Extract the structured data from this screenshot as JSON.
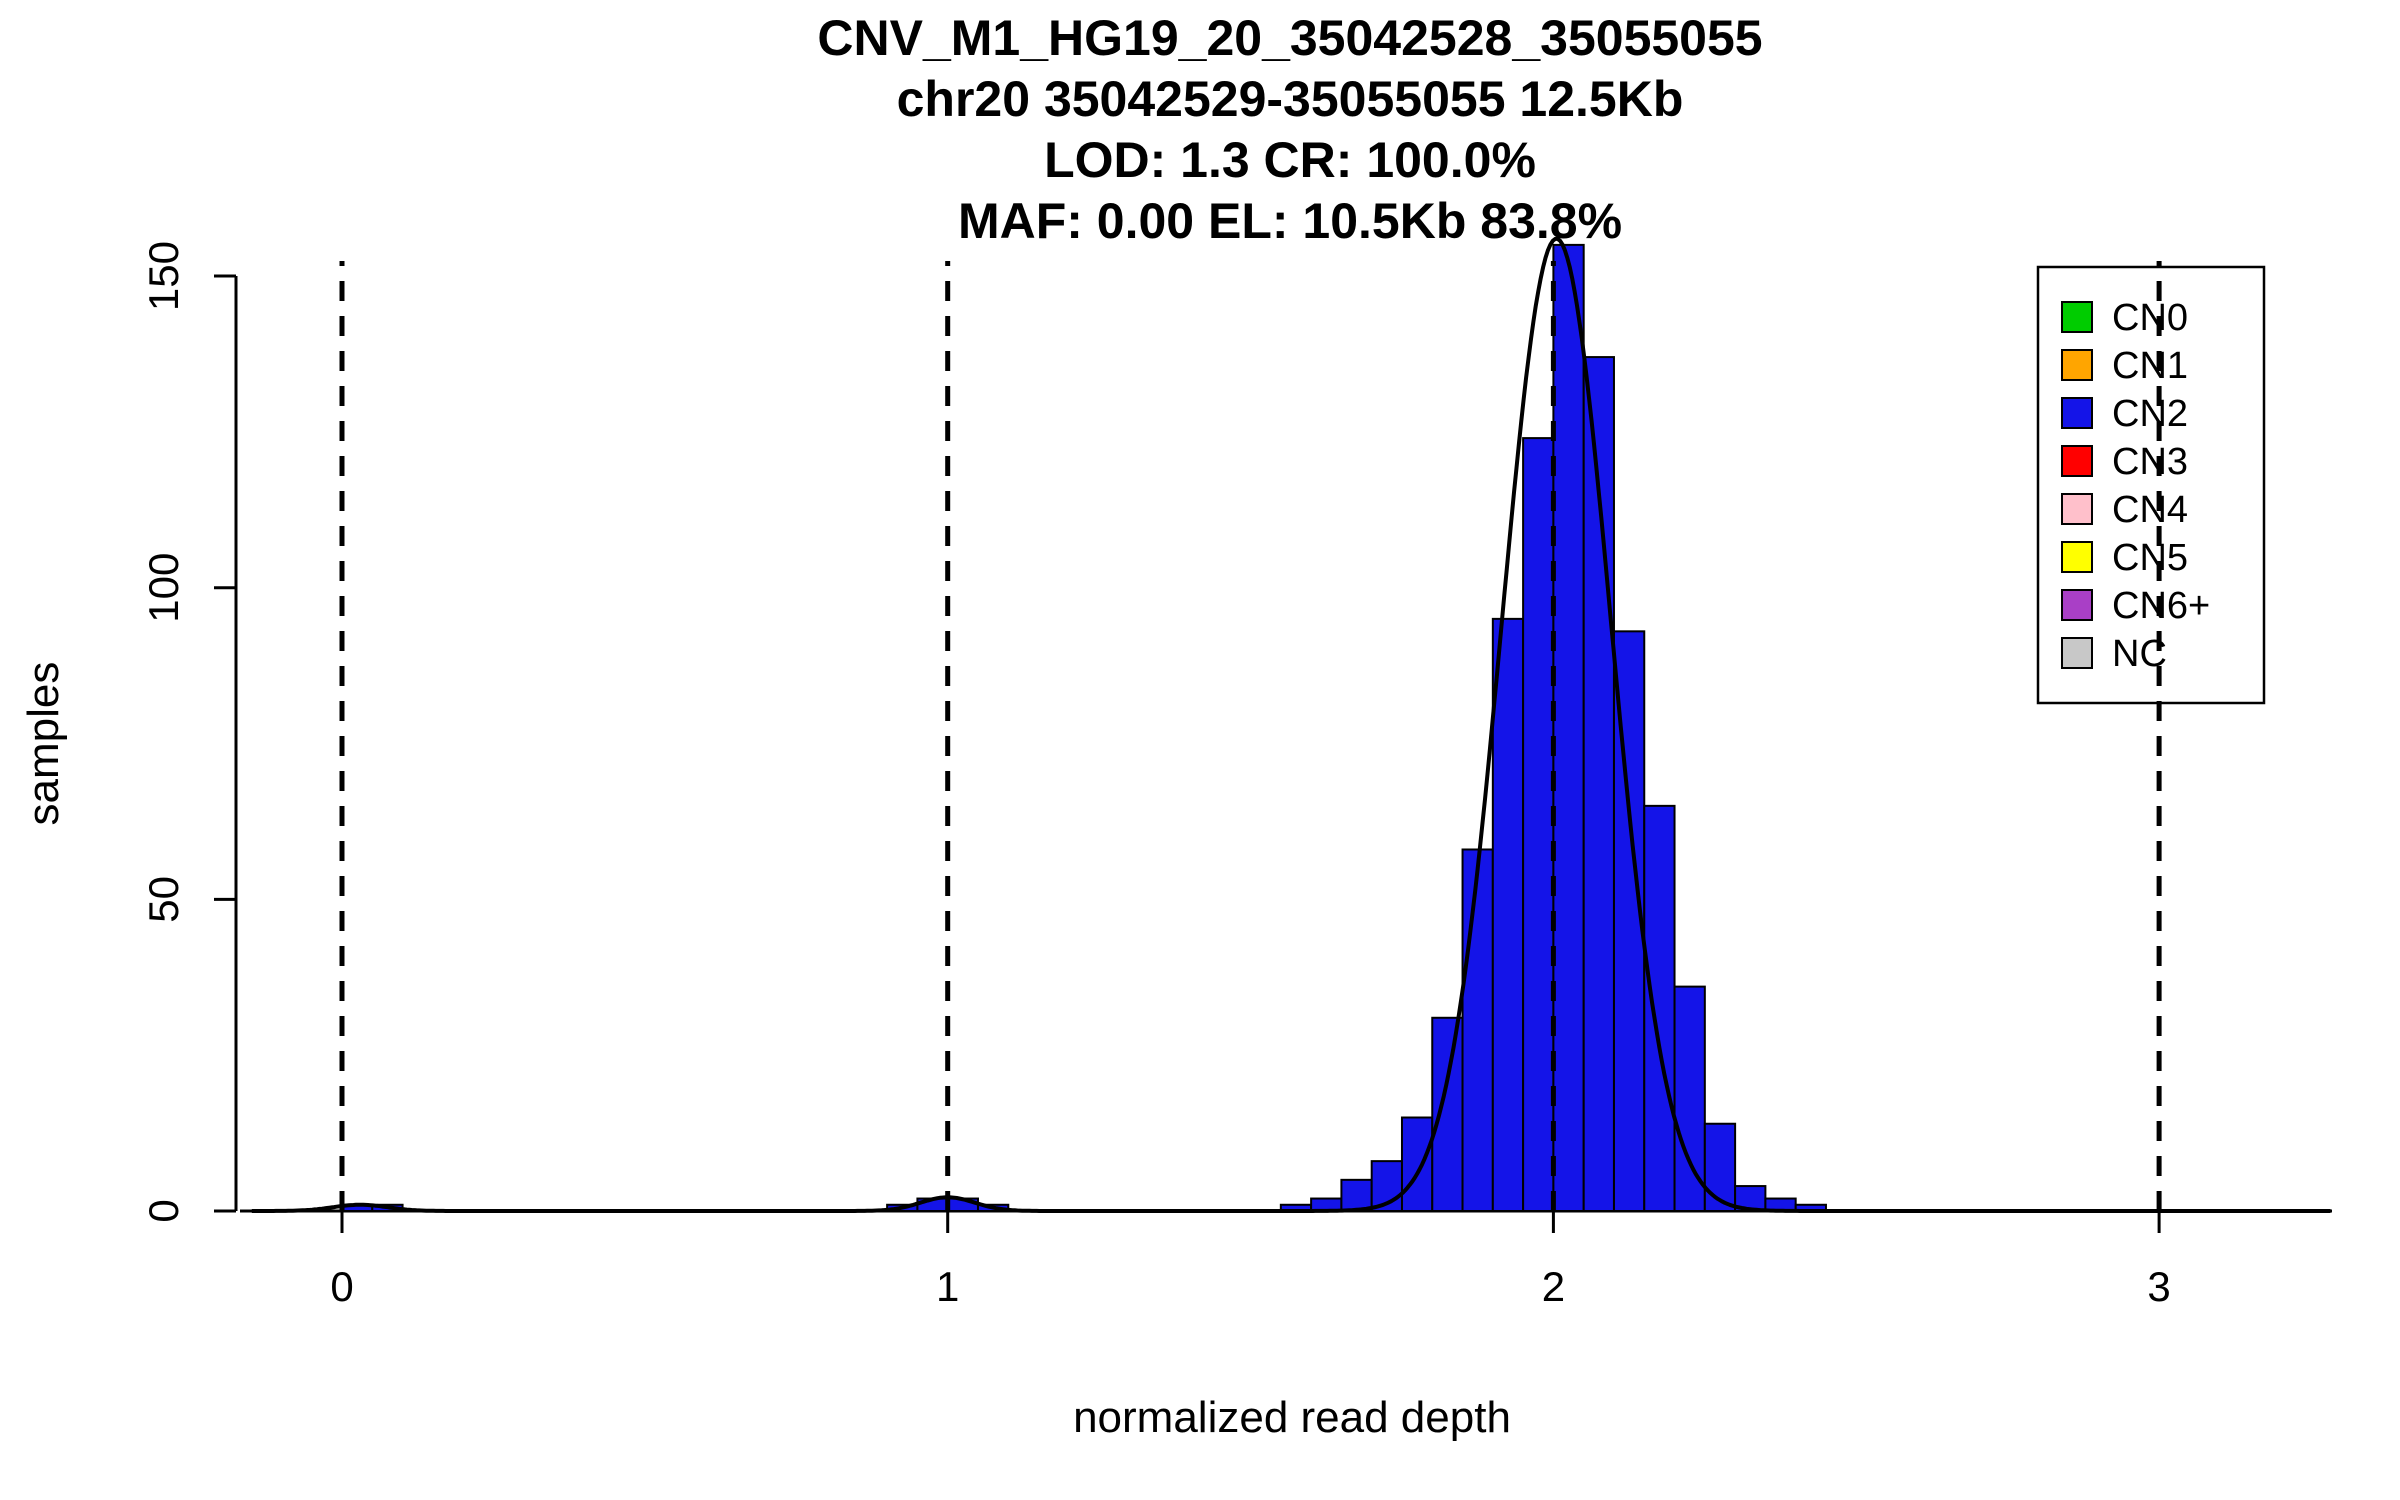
{
  "page": {
    "background": "#FFFFFF"
  },
  "chart_data": {
    "type": "bar",
    "subtype": "histogram-with-density-curve",
    "title_lines": [
      "CNV_M1_HG19_20_35042528_35055055",
      "chr20 35042529-35055055 12.5Kb",
      "LOD: 1.3 CR: 100.0%",
      "MAF: 0.00 EL: 10.5Kb 83.8%"
    ],
    "xlabel": "normalized read depth",
    "ylabel": "samples",
    "xlim": [
      -0.149,
      3.284
    ],
    "ylim": [
      0,
      155
    ],
    "xticks": [
      "0",
      "1",
      "2",
      "3"
    ],
    "yticks": [
      "0",
      "50",
      "100",
      "150"
    ],
    "grid": false,
    "bin_width": 0.05,
    "bars": [
      {
        "x0": 0.0,
        "count": 1
      },
      {
        "x0": 0.05,
        "count": 1
      },
      {
        "x0": 0.9,
        "count": 1
      },
      {
        "x0": 0.95,
        "count": 2
      },
      {
        "x0": 1.0,
        "count": 2
      },
      {
        "x0": 1.05,
        "count": 1
      },
      {
        "x0": 1.55,
        "count": 1
      },
      {
        "x0": 1.6,
        "count": 2
      },
      {
        "x0": 1.65,
        "count": 5
      },
      {
        "x0": 1.7,
        "count": 8
      },
      {
        "x0": 1.75,
        "count": 15
      },
      {
        "x0": 1.8,
        "count": 31
      },
      {
        "x0": 1.85,
        "count": 58
      },
      {
        "x0": 1.9,
        "count": 95
      },
      {
        "x0": 1.95,
        "count": 124
      },
      {
        "x0": 2.0,
        "count": 155
      },
      {
        "x0": 2.05,
        "count": 137
      },
      {
        "x0": 2.1,
        "count": 93
      },
      {
        "x0": 2.15,
        "count": 65
      },
      {
        "x0": 2.2,
        "count": 36
      },
      {
        "x0": 2.25,
        "count": 14
      },
      {
        "x0": 2.3,
        "count": 4
      },
      {
        "x0": 2.35,
        "count": 2
      },
      {
        "x0": 2.4,
        "count": 1
      }
    ],
    "bar_color": "#1414E8",
    "bar_border_color": "#000000",
    "density_curve": {
      "color": "#000000",
      "components": [
        {
          "mean": 2.005,
          "sd": 0.09,
          "peak": 156
        },
        {
          "mean": 1.0,
          "sd": 0.045,
          "peak": 2.2
        },
        {
          "mean": 0.03,
          "sd": 0.045,
          "peak": 1.0
        }
      ]
    },
    "vlines": {
      "positions": [
        0,
        1,
        2,
        3
      ],
      "style": "dashed",
      "color": "#000000"
    },
    "legend": {
      "position": "top-right",
      "border_color": "#000000",
      "items": [
        {
          "label": "CN0",
          "color": "#00CC00"
        },
        {
          "label": "CN1",
          "color": "#FFA500"
        },
        {
          "label": "CN2",
          "color": "#1414E8"
        },
        {
          "label": "CN3",
          "color": "#FF0000"
        },
        {
          "label": "CN4",
          "color": "#FFC0CB"
        },
        {
          "label": "CN5",
          "color": "#FFFF00"
        },
        {
          "label": "CN6+",
          "color": "#A93FC6"
        },
        {
          "label": "NC",
          "color": "#C8C8C8"
        }
      ]
    }
  }
}
